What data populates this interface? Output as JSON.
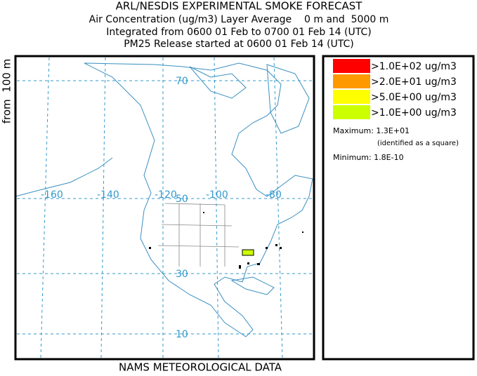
{
  "header": {
    "title": "ARL/NESDIS EXPERIMENTAL SMOKE FORECAST",
    "lines": [
      "Air Concentration (ug/m3) Layer Average    0 m and  5000 m",
      "Integrated from 0600 01 Feb to 0700 01 Feb 14 (UTC)",
      "PM25 Release started at 0600 01 Feb 14 (UTC)"
    ]
  },
  "side_label": "from  100 m",
  "map": {
    "longitude_labels": [
      "-160",
      "-140",
      "-120",
      "-100",
      "-80"
    ],
    "latitude_labels": [
      "70",
      "50",
      "30",
      "10"
    ]
  },
  "legend": {
    "items": [
      {
        "label": ">1.0E+02 ug/m3",
        "color": "#ff0000"
      },
      {
        "label": ">2.0E+01 ug/m3",
        "color": "#ff9900"
      },
      {
        "label": ">5.0E+00 ug/m3",
        "color": "#ffff00"
      },
      {
        "label": ">1.0E+00 ug/m3",
        "color": "#ccff00"
      }
    ],
    "maximum": "Maximum: 1.3E+01",
    "maximum_note": "(identified as a square)",
    "minimum": "Minimum: 1.8E-10"
  },
  "footer": "NAMS METEOROLOGICAL DATA"
}
